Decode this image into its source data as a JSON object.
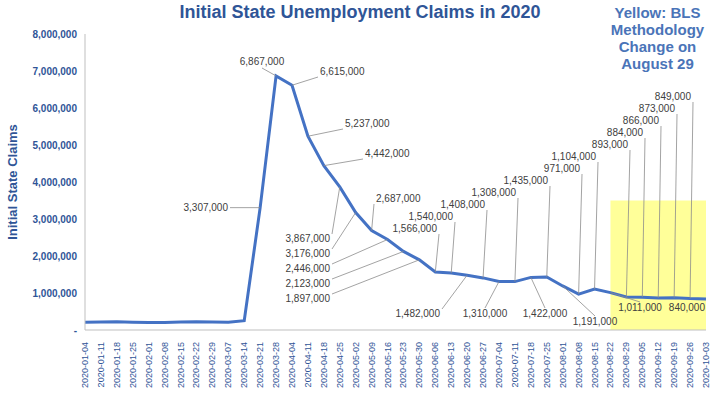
{
  "chart_data": {
    "type": "line",
    "title": "Initial State Unemployment Claims in 2020",
    "y_label": "Initial  State Claims",
    "annotation": [
      "Yellow: BLS",
      "Methodology",
      "Change on",
      "August 29"
    ],
    "categories": [
      "2020-01-04",
      "2020-01-11",
      "2020-01-18",
      "2020-01-25",
      "2020-02-01",
      "2020-02-08",
      "2020-02-15",
      "2020-02-22",
      "2020-02-29",
      "2020-03-07",
      "2020-03-14",
      "2020-03-21",
      "2020-03-28",
      "2020-04-04",
      "2020-04-11",
      "2020-04-18",
      "2020-04-25",
      "2020-05-02",
      "2020-05-09",
      "2020-05-16",
      "2020-05-23",
      "2020-05-30",
      "2020-06-06",
      "2020-06-13",
      "2020-06-20",
      "2020-06-27",
      "2020-07-04",
      "2020-07-11",
      "2020-07-18",
      "2020-07-25",
      "2020-08-01",
      "2020-08-08",
      "2020-08-15",
      "2020-08-22",
      "2020-08-29",
      "2020-09-05",
      "2020-09-12",
      "2020-09-19",
      "2020-09-26",
      "2020-10-03"
    ],
    "values": [
      211000,
      214000,
      223000,
      212000,
      203000,
      204000,
      213000,
      220000,
      217000,
      211000,
      251000,
      3307000,
      6867000,
      6615000,
      5237000,
      4442000,
      3867000,
      3176000,
      2687000,
      2446000,
      2123000,
      1897000,
      1566000,
      1540000,
      1482000,
      1408000,
      1310000,
      1308000,
      1422000,
      1435000,
      1191000,
      971000,
      1104000,
      1011000,
      893000,
      884000,
      866000,
      873000,
      849000,
      840000
    ],
    "value_labels": [
      null,
      null,
      null,
      null,
      null,
      null,
      null,
      null,
      null,
      null,
      null,
      "3,307,000",
      "6,867,000",
      "6,615,000",
      "5,237,000",
      "4,442,000",
      "3,867,000",
      "3,176,000",
      "2,687,000",
      "2,446,000",
      "2,123,000",
      "1,897,000",
      "1,566,000",
      "1,540,000",
      "1,482,000",
      "1,408,000",
      "1,310,000",
      "1,308,000",
      "1,422,000",
      "1,435,000",
      "1,191,000",
      "971,000",
      "1,104,000",
      "1,011,000",
      "893,000",
      "884,000",
      "866,000",
      "873,000",
      "849,000",
      "840,000"
    ],
    "data_labels": true,
    "color": "#4472c4",
    "ylim": [
      0,
      8000000
    ],
    "yticks": [
      {
        "value": 0,
        "label": "-"
      },
      {
        "value": 1000000,
        "label": "1,000,000"
      },
      {
        "value": 2000000,
        "label": "2,000,000"
      },
      {
        "value": 3000000,
        "label": "3,000,000"
      },
      {
        "value": 4000000,
        "label": "4,000,000"
      },
      {
        "value": 5000000,
        "label": "5,000,000"
      },
      {
        "value": 6000000,
        "label": "6,000,000"
      },
      {
        "value": 7000000,
        "label": "7,000,000"
      },
      {
        "value": 8000000,
        "label": "8,000,000"
      }
    ],
    "grid": false,
    "highlight": {
      "from": "2020-08-22",
      "to": "2020-10-03",
      "ylim": [
        0,
        3500000
      ],
      "color": "#ffff99"
    }
  }
}
